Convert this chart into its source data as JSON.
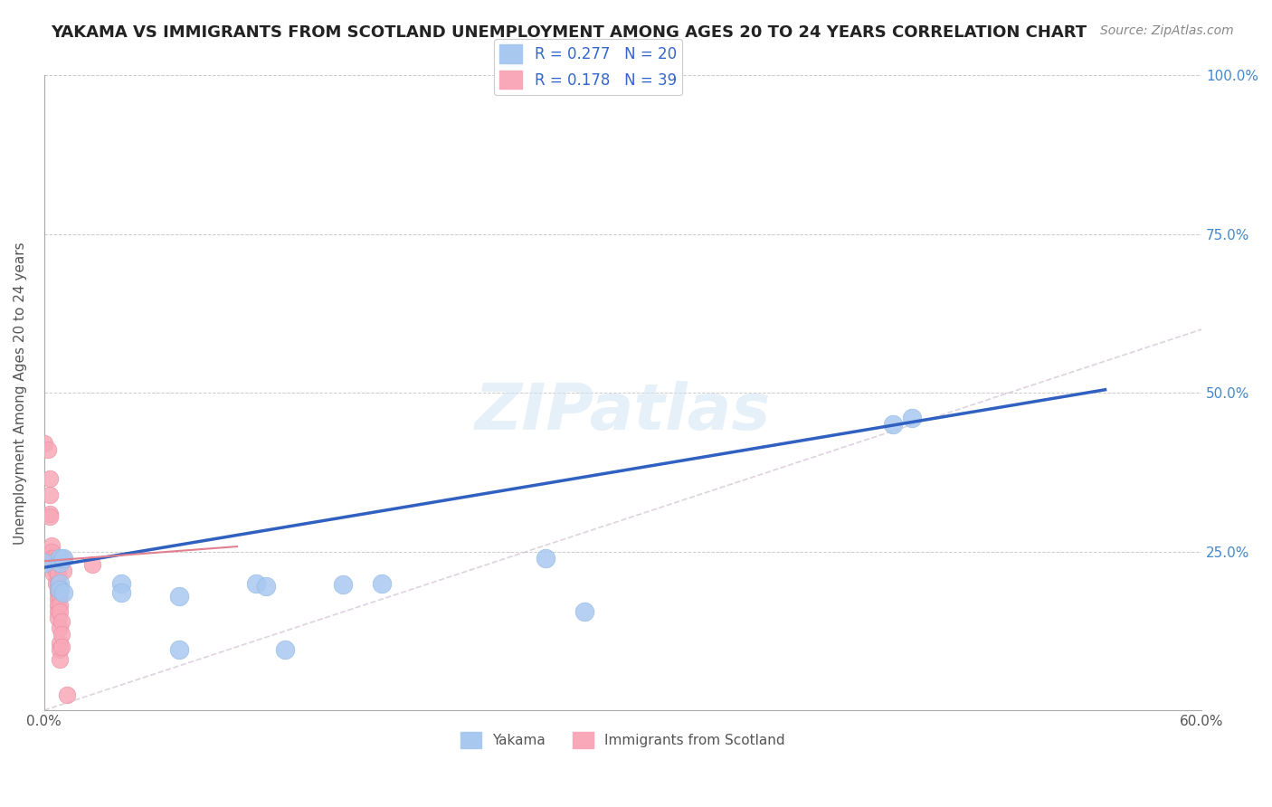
{
  "title": "YAKAMA VS IMMIGRANTS FROM SCOTLAND UNEMPLOYMENT AMONG AGES 20 TO 24 YEARS CORRELATION CHART",
  "source": "Source: ZipAtlas.com",
  "xlabel": "",
  "ylabel": "Unemployment Among Ages 20 to 24 years",
  "xlim": [
    0.0,
    0.6
  ],
  "ylim": [
    0.0,
    1.0
  ],
  "x_ticks": [
    0.0,
    0.1,
    0.2,
    0.3,
    0.4,
    0.5,
    0.6
  ],
  "x_tick_labels": [
    "0.0%",
    "",
    "",
    "",
    "",
    "",
    "60.0%"
  ],
  "y_ticks": [
    0.0,
    0.25,
    0.5,
    0.75,
    1.0
  ],
  "y_tick_labels": [
    "",
    "25.0%",
    "50.0%",
    "75.0%",
    "100.0%"
  ],
  "legend_R_yakama": "0.277",
  "legend_N_yakama": "20",
  "legend_R_scotland": "0.178",
  "legend_N_scotland": "39",
  "yakama_color": "#a8c8f0",
  "scotland_color": "#f8a8b8",
  "trendline_yakama_color": "#3060c0",
  "trendline_scotland_color": "#e08090",
  "diagonal_color": "#d0c0d0",
  "watermark": "ZIPatlas",
  "yakama_points": [
    [
      0.0,
      0.232
    ],
    [
      0.008,
      0.24
    ],
    [
      0.008,
      0.232
    ],
    [
      0.01,
      0.24
    ],
    [
      0.008,
      0.2
    ],
    [
      0.008,
      0.19
    ],
    [
      0.01,
      0.185
    ],
    [
      0.04,
      0.2
    ],
    [
      0.04,
      0.185
    ],
    [
      0.07,
      0.18
    ],
    [
      0.11,
      0.2
    ],
    [
      0.115,
      0.195
    ],
    [
      0.155,
      0.198
    ],
    [
      0.175,
      0.2
    ],
    [
      0.28,
      0.155
    ],
    [
      0.44,
      0.45
    ],
    [
      0.45,
      0.46
    ],
    [
      0.125,
      0.095
    ],
    [
      0.07,
      0.095
    ],
    [
      0.26,
      0.24
    ]
  ],
  "scotland_points": [
    [
      0.0,
      0.42
    ],
    [
      0.002,
      0.41
    ],
    [
      0.003,
      0.365
    ],
    [
      0.003,
      0.34
    ],
    [
      0.003,
      0.31
    ],
    [
      0.003,
      0.305
    ],
    [
      0.004,
      0.26
    ],
    [
      0.004,
      0.25
    ],
    [
      0.004,
      0.24
    ],
    [
      0.005,
      0.24
    ],
    [
      0.005,
      0.235
    ],
    [
      0.005,
      0.215
    ],
    [
      0.006,
      0.235
    ],
    [
      0.006,
      0.225
    ],
    [
      0.006,
      0.22
    ],
    [
      0.006,
      0.2
    ],
    [
      0.007,
      0.215
    ],
    [
      0.007,
      0.2
    ],
    [
      0.007,
      0.19
    ],
    [
      0.007,
      0.185
    ],
    [
      0.007,
      0.175
    ],
    [
      0.007,
      0.165
    ],
    [
      0.007,
      0.155
    ],
    [
      0.007,
      0.145
    ],
    [
      0.008,
      0.185
    ],
    [
      0.008,
      0.18
    ],
    [
      0.008,
      0.165
    ],
    [
      0.008,
      0.155
    ],
    [
      0.008,
      0.13
    ],
    [
      0.008,
      0.105
    ],
    [
      0.008,
      0.095
    ],
    [
      0.008,
      0.08
    ],
    [
      0.009,
      0.14
    ],
    [
      0.009,
      0.12
    ],
    [
      0.009,
      0.1
    ],
    [
      0.01,
      0.24
    ],
    [
      0.01,
      0.22
    ],
    [
      0.012,
      0.025
    ],
    [
      0.025,
      0.23
    ]
  ],
  "yakama_trendline": [
    [
      0.0,
      0.225
    ],
    [
      0.55,
      0.505
    ]
  ],
  "scotland_trendline": [
    [
      0.0,
      0.235
    ],
    [
      0.1,
      0.258
    ]
  ],
  "diagonal_line": [
    [
      0.0,
      0.0
    ],
    [
      1.0,
      1.0
    ]
  ]
}
